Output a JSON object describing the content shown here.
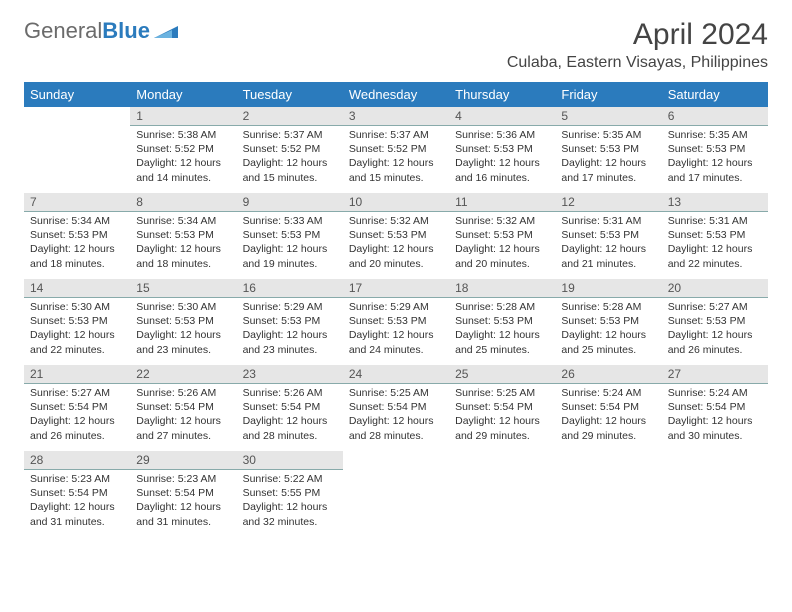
{
  "logo": {
    "text1": "General",
    "text2": "Blue"
  },
  "title": "April 2024",
  "location": "Culaba, Eastern Visayas, Philippines",
  "colors": {
    "header_bg": "#2b7bbd",
    "header_fg": "#ffffff",
    "daynum_bg": "#e6e6e6",
    "text": "#333333"
  },
  "days_of_week": [
    "Sunday",
    "Monday",
    "Tuesday",
    "Wednesday",
    "Thursday",
    "Friday",
    "Saturday"
  ],
  "weeks": [
    [
      null,
      {
        "n": "1",
        "sr": "Sunrise: 5:38 AM",
        "ss": "Sunset: 5:52 PM",
        "dl": "Daylight: 12 hours and 14 minutes."
      },
      {
        "n": "2",
        "sr": "Sunrise: 5:37 AM",
        "ss": "Sunset: 5:52 PM",
        "dl": "Daylight: 12 hours and 15 minutes."
      },
      {
        "n": "3",
        "sr": "Sunrise: 5:37 AM",
        "ss": "Sunset: 5:52 PM",
        "dl": "Daylight: 12 hours and 15 minutes."
      },
      {
        "n": "4",
        "sr": "Sunrise: 5:36 AM",
        "ss": "Sunset: 5:53 PM",
        "dl": "Daylight: 12 hours and 16 minutes."
      },
      {
        "n": "5",
        "sr": "Sunrise: 5:35 AM",
        "ss": "Sunset: 5:53 PM",
        "dl": "Daylight: 12 hours and 17 minutes."
      },
      {
        "n": "6",
        "sr": "Sunrise: 5:35 AM",
        "ss": "Sunset: 5:53 PM",
        "dl": "Daylight: 12 hours and 17 minutes."
      }
    ],
    [
      {
        "n": "7",
        "sr": "Sunrise: 5:34 AM",
        "ss": "Sunset: 5:53 PM",
        "dl": "Daylight: 12 hours and 18 minutes."
      },
      {
        "n": "8",
        "sr": "Sunrise: 5:34 AM",
        "ss": "Sunset: 5:53 PM",
        "dl": "Daylight: 12 hours and 18 minutes."
      },
      {
        "n": "9",
        "sr": "Sunrise: 5:33 AM",
        "ss": "Sunset: 5:53 PM",
        "dl": "Daylight: 12 hours and 19 minutes."
      },
      {
        "n": "10",
        "sr": "Sunrise: 5:32 AM",
        "ss": "Sunset: 5:53 PM",
        "dl": "Daylight: 12 hours and 20 minutes."
      },
      {
        "n": "11",
        "sr": "Sunrise: 5:32 AM",
        "ss": "Sunset: 5:53 PM",
        "dl": "Daylight: 12 hours and 20 minutes."
      },
      {
        "n": "12",
        "sr": "Sunrise: 5:31 AM",
        "ss": "Sunset: 5:53 PM",
        "dl": "Daylight: 12 hours and 21 minutes."
      },
      {
        "n": "13",
        "sr": "Sunrise: 5:31 AM",
        "ss": "Sunset: 5:53 PM",
        "dl": "Daylight: 12 hours and 22 minutes."
      }
    ],
    [
      {
        "n": "14",
        "sr": "Sunrise: 5:30 AM",
        "ss": "Sunset: 5:53 PM",
        "dl": "Daylight: 12 hours and 22 minutes."
      },
      {
        "n": "15",
        "sr": "Sunrise: 5:30 AM",
        "ss": "Sunset: 5:53 PM",
        "dl": "Daylight: 12 hours and 23 minutes."
      },
      {
        "n": "16",
        "sr": "Sunrise: 5:29 AM",
        "ss": "Sunset: 5:53 PM",
        "dl": "Daylight: 12 hours and 23 minutes."
      },
      {
        "n": "17",
        "sr": "Sunrise: 5:29 AM",
        "ss": "Sunset: 5:53 PM",
        "dl": "Daylight: 12 hours and 24 minutes."
      },
      {
        "n": "18",
        "sr": "Sunrise: 5:28 AM",
        "ss": "Sunset: 5:53 PM",
        "dl": "Daylight: 12 hours and 25 minutes."
      },
      {
        "n": "19",
        "sr": "Sunrise: 5:28 AM",
        "ss": "Sunset: 5:53 PM",
        "dl": "Daylight: 12 hours and 25 minutes."
      },
      {
        "n": "20",
        "sr": "Sunrise: 5:27 AM",
        "ss": "Sunset: 5:53 PM",
        "dl": "Daylight: 12 hours and 26 minutes."
      }
    ],
    [
      {
        "n": "21",
        "sr": "Sunrise: 5:27 AM",
        "ss": "Sunset: 5:54 PM",
        "dl": "Daylight: 12 hours and 26 minutes."
      },
      {
        "n": "22",
        "sr": "Sunrise: 5:26 AM",
        "ss": "Sunset: 5:54 PM",
        "dl": "Daylight: 12 hours and 27 minutes."
      },
      {
        "n": "23",
        "sr": "Sunrise: 5:26 AM",
        "ss": "Sunset: 5:54 PM",
        "dl": "Daylight: 12 hours and 28 minutes."
      },
      {
        "n": "24",
        "sr": "Sunrise: 5:25 AM",
        "ss": "Sunset: 5:54 PM",
        "dl": "Daylight: 12 hours and 28 minutes."
      },
      {
        "n": "25",
        "sr": "Sunrise: 5:25 AM",
        "ss": "Sunset: 5:54 PM",
        "dl": "Daylight: 12 hours and 29 minutes."
      },
      {
        "n": "26",
        "sr": "Sunrise: 5:24 AM",
        "ss": "Sunset: 5:54 PM",
        "dl": "Daylight: 12 hours and 29 minutes."
      },
      {
        "n": "27",
        "sr": "Sunrise: 5:24 AM",
        "ss": "Sunset: 5:54 PM",
        "dl": "Daylight: 12 hours and 30 minutes."
      }
    ],
    [
      {
        "n": "28",
        "sr": "Sunrise: 5:23 AM",
        "ss": "Sunset: 5:54 PM",
        "dl": "Daylight: 12 hours and 31 minutes."
      },
      {
        "n": "29",
        "sr": "Sunrise: 5:23 AM",
        "ss": "Sunset: 5:54 PM",
        "dl": "Daylight: 12 hours and 31 minutes."
      },
      {
        "n": "30",
        "sr": "Sunrise: 5:22 AM",
        "ss": "Sunset: 5:55 PM",
        "dl": "Daylight: 12 hours and 32 minutes."
      },
      null,
      null,
      null,
      null
    ]
  ]
}
